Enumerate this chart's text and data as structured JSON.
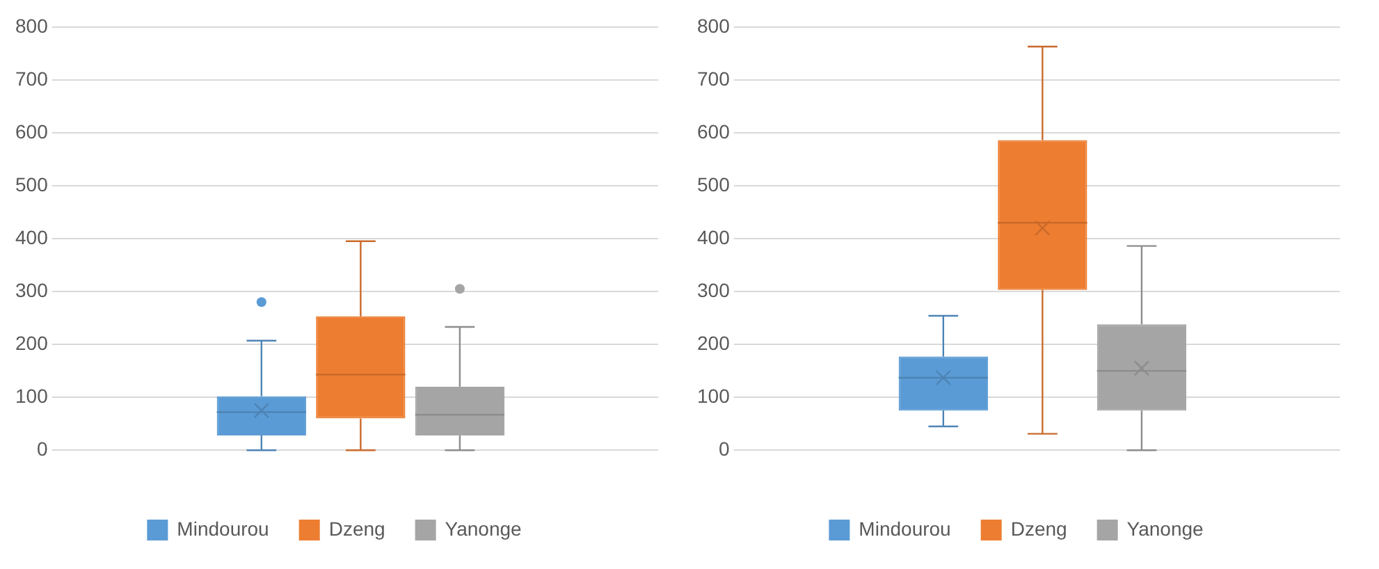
{
  "chart_data": [
    {
      "type": "box",
      "categories": [
        null
      ],
      "ylim": [
        0,
        800
      ],
      "yticks": [
        0,
        100,
        200,
        300,
        400,
        500,
        600,
        700,
        800
      ],
      "grid": "y",
      "legend": "bottom",
      "series": [
        {
          "name": "Mindourou",
          "color": "#5b9bd5",
          "boxes": [
            {
              "low": 0,
              "q1": 28,
              "median": 72,
              "q3": 102,
              "high": 207,
              "mean": 75,
              "outliers": [
                280
              ]
            }
          ]
        },
        {
          "name": "Dzeng",
          "color": "#ed7d31",
          "boxes": [
            {
              "low": 0,
              "q1": 60,
              "median": 143,
              "q3": 253,
              "high": 395
            }
          ]
        },
        {
          "name": "Yanonge",
          "color": "#a5a5a5",
          "boxes": [
            {
              "low": 0,
              "q1": 28,
              "median": 67,
              "q3": 120,
              "high": 233,
              "outliers": [
                305
              ]
            }
          ]
        }
      ]
    },
    {
      "type": "box",
      "categories": [
        null
      ],
      "ylim": [
        0,
        800
      ],
      "yticks": [
        0,
        100,
        200,
        300,
        400,
        500,
        600,
        700,
        800
      ],
      "grid": "y",
      "legend": "bottom",
      "series": [
        {
          "name": "Mindourou",
          "color": "#5b9bd5",
          "boxes": [
            {
              "low": 45,
              "q1": 75,
              "median": 137,
              "q3": 177,
              "high": 254,
              "mean": 137
            }
          ]
        },
        {
          "name": "Dzeng",
          "color": "#ed7d31",
          "boxes": [
            {
              "low": 31,
              "q1": 303,
              "median": 430,
              "q3": 586,
              "high": 763,
              "mean": 420
            }
          ]
        },
        {
          "name": "Yanonge",
          "color": "#a5a5a5",
          "boxes": [
            {
              "low": 0,
              "q1": 75,
              "median": 150,
              "q3": 238,
              "high": 386,
              "mean": 155
            }
          ]
        }
      ]
    }
  ]
}
